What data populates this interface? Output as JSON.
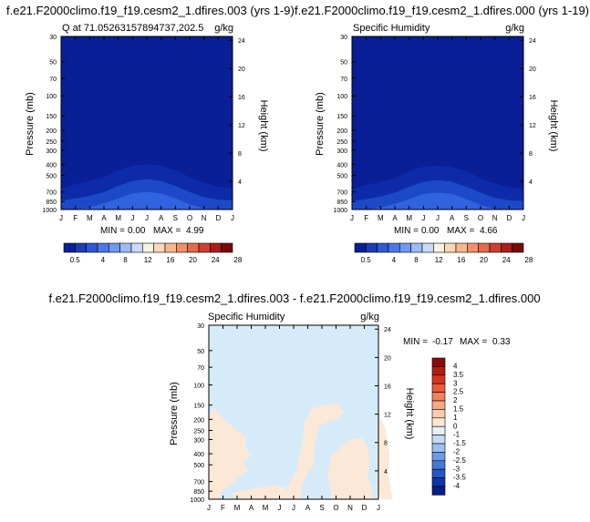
{
  "chart_data": [
    {
      "type": "heatmap",
      "title": "f.e21.F2000climo.f19_f19.cesm2_1.dfires.003 (yrs 1-9)",
      "subtitle": "Q at 71.05263157894737,202.5",
      "units": "g/kg",
      "ylabel": "Pressure (mb)",
      "ylabel_right": "Height (km)",
      "x_ticks": [
        "J",
        "F",
        "M",
        "A",
        "M",
        "J",
        "J",
        "A",
        "S",
        "O",
        "N",
        "D",
        "J"
      ],
      "y_ticks": [
        "30",
        "50",
        "70",
        "100",
        "150",
        "200",
        "250",
        "300",
        "400",
        "500",
        "700",
        "850",
        "1000"
      ],
      "y_ticks_right": [
        "24",
        "20",
        "16",
        "12",
        "8",
        "4"
      ],
      "min_label": "MIN =",
      "min_value": "0.00",
      "max_label": "MAX =",
      "max_value": "4.99",
      "colorbar_labels": [
        "0.5",
        "4",
        "8",
        "12",
        "16",
        "20",
        "24",
        "28"
      ],
      "background_color": "#0a1e96",
      "field_layers": [
        {
          "color": "#0d2ba8",
          "level_mb": [
            650,
            600,
            560,
            520,
            450,
            410,
            400,
            410,
            450,
            520,
            580,
            630,
            650
          ]
        },
        {
          "color": "#1c49c8",
          "level_mb": [
            830,
            800,
            760,
            700,
            620,
            560,
            540,
            560,
            620,
            700,
            780,
            820,
            830
          ]
        },
        {
          "color": "#3063df",
          "level_mb": [
            1000,
            1000,
            960,
            880,
            800,
            720,
            700,
            720,
            800,
            900,
            980,
            1000,
            1000
          ]
        }
      ]
    },
    {
      "type": "heatmap",
      "title": "f.e21.F2000climo.f19_f19.cesm2_1.dfires.000 (yrs 1-19)",
      "subtitle": "Specific Humidity",
      "units": "g/kg",
      "ylabel": "Pressure (mb)",
      "ylabel_right": "Height (km)",
      "x_ticks": [
        "J",
        "F",
        "M",
        "A",
        "M",
        "J",
        "J",
        "A",
        "S",
        "O",
        "N",
        "D",
        "J"
      ],
      "y_ticks": [
        "30",
        "50",
        "70",
        "100",
        "150",
        "200",
        "250",
        "300",
        "400",
        "500",
        "700",
        "850",
        "1000"
      ],
      "y_ticks_right": [
        "24",
        "20",
        "16",
        "12",
        "8",
        "4"
      ],
      "min_label": "MIN =",
      "min_value": "0.00",
      "max_label": "MAX =",
      "max_value": "4.66",
      "colorbar_labels": [
        "0.5",
        "4",
        "8",
        "12",
        "16",
        "20",
        "24",
        "28"
      ],
      "background_color": "#0a1e96",
      "field_layers": [
        {
          "color": "#0d2ba8",
          "level_mb": [
            660,
            610,
            570,
            530,
            460,
            420,
            410,
            420,
            460,
            530,
            590,
            640,
            660
          ]
        },
        {
          "color": "#1c49c8",
          "level_mb": [
            840,
            810,
            770,
            710,
            630,
            570,
            550,
            570,
            630,
            710,
            790,
            830,
            840
          ]
        },
        {
          "color": "#3063df",
          "level_mb": [
            1000,
            1000,
            970,
            890,
            810,
            730,
            710,
            730,
            810,
            910,
            990,
            1000,
            1000
          ]
        }
      ]
    },
    {
      "type": "heatmap",
      "title": "f.e21.F2000climo.f19_f19.cesm2_1.dfires.003 - f.e21.F2000climo.f19_f19.cesm2_1.dfires.000",
      "subtitle": "Specific Humidity",
      "units": "g/kg",
      "ylabel": "Pressure (mb)",
      "ylabel_right": "Height (km)",
      "x_ticks": [
        "J",
        "F",
        "M",
        "A",
        "M",
        "J",
        "J",
        "A",
        "S",
        "O",
        "N",
        "D",
        "J"
      ],
      "y_ticks": [
        "30",
        "50",
        "70",
        "100",
        "150",
        "200",
        "250",
        "300",
        "400",
        "500",
        "700",
        "850",
        "1000"
      ],
      "y_ticks_right": [
        "24",
        "20",
        "16",
        "12",
        "8",
        "4"
      ],
      "min_label": "MIN =",
      "min_value": "-0.17",
      "max_label": "MAX =",
      "max_value": "0.33",
      "colorbar_labels": [
        "4",
        "3.5",
        "3",
        "2.5",
        "2",
        "1.5",
        "1",
        "0",
        "-1",
        "-1.5",
        "-2",
        "-2.5",
        "-3",
        "-3.5",
        "-4"
      ],
      "background_color": "#d6ebfa",
      "patch_color": "#fce8d7",
      "patches": [
        [
          [
            0,
            180
          ],
          [
            0.4,
            160
          ],
          [
            1.2,
            210
          ],
          [
            2,
            250
          ],
          [
            2.7,
            290
          ],
          [
            2.5,
            340
          ],
          [
            3,
            420
          ],
          [
            2.4,
            470
          ],
          [
            2.8,
            560
          ],
          [
            2.2,
            620
          ],
          [
            1.8,
            720
          ],
          [
            1.2,
            790
          ],
          [
            0.6,
            1000
          ],
          [
            0,
            1000
          ]
        ],
        [
          [
            1.8,
            1000
          ],
          [
            1.6,
            880
          ],
          [
            2.5,
            830
          ],
          [
            3.5,
            790
          ],
          [
            4.6,
            760
          ],
          [
            5.4,
            780
          ],
          [
            5.6,
            880
          ],
          [
            5.8,
            1000
          ]
        ],
        [
          [
            5.7,
            1000
          ],
          [
            5.6,
            760
          ],
          [
            6.2,
            560
          ],
          [
            6.6,
            330
          ],
          [
            6.8,
            210
          ],
          [
            7.3,
            160
          ],
          [
            8.2,
            150
          ],
          [
            9,
            145
          ],
          [
            9.6,
            170
          ],
          [
            9,
            200
          ],
          [
            8.4,
            210
          ],
          [
            7.8,
            230
          ],
          [
            7.5,
            330
          ],
          [
            7.4,
            500
          ],
          [
            6.9,
            620
          ],
          [
            6.6,
            760
          ],
          [
            6.5,
            1000
          ]
        ],
        [
          [
            8.7,
            1000
          ],
          [
            8.6,
            800
          ],
          [
            8.4,
            580
          ],
          [
            8.7,
            420
          ],
          [
            9.3,
            350
          ],
          [
            10,
            300
          ],
          [
            10.8,
            290
          ],
          [
            11.2,
            340
          ],
          [
            11.4,
            460
          ],
          [
            11.2,
            620
          ],
          [
            11.5,
            800
          ],
          [
            11.7,
            1000
          ]
        ],
        [
          [
            12,
            180
          ],
          [
            12.5,
            240
          ],
          [
            12.8,
            420
          ],
          [
            12.7,
            560
          ],
          [
            12.8,
            700
          ],
          [
            13,
            1000
          ],
          [
            12.2,
            1000
          ],
          [
            12,
            860
          ]
        ]
      ]
    }
  ]
}
